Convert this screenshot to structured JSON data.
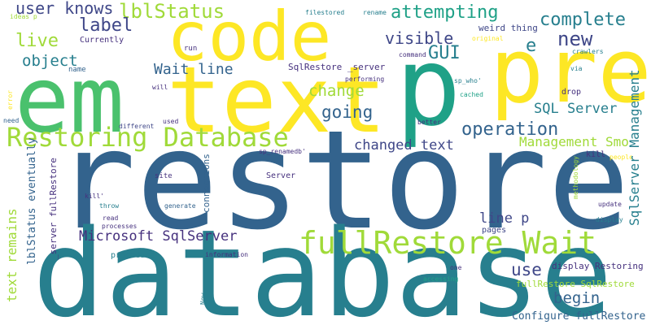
{
  "palette": {
    "indigo": "#46317e",
    "navy": "#3f4788",
    "blue": "#33638d",
    "teal": "#277f8e",
    "sea": "#1fa187",
    "green": "#4ac16d",
    "lime": "#a0da39",
    "yellow": "#fde725"
  },
  "words": [
    "restore",
    "database",
    "em",
    "text",
    "code",
    "pre",
    "p",
    "fullRestore Wait",
    "Restoring Database",
    "lblStatus",
    "user knows",
    "attempting",
    "complete",
    "label",
    "new",
    "live",
    "visible",
    "GUI",
    "e",
    "object",
    "Wait line",
    "SqlRestore _server",
    "change",
    "going",
    "SQL Server",
    "operation",
    "changed text",
    "Management Smo",
    "SqlServer Management",
    "Microsoft SqlServer",
    "line p",
    "use",
    "begin",
    "display Restoring",
    "fullRestore SqlRestore",
    "Configure fullRestore",
    "text remains",
    "lblStatus eventually",
    "_server fullRestore",
    "connections",
    "Currently",
    "ideas p",
    "filestored",
    "rename",
    "weird thing",
    "original",
    "crawlers",
    "run",
    "command",
    "via",
    "name",
    "performing",
    "sp_who'",
    "will",
    "error",
    "cached",
    "drop",
    "need",
    "different",
    "used",
    "better",
    "sp_renamedb'",
    "kill",
    "people",
    "site",
    "Server",
    "kill'",
    "methodology",
    "throw",
    "generate",
    "update",
    "read",
    "processes",
    "display",
    "pages",
    "procedure",
    "information",
    "one",
    "accessing",
    "Now"
  ]
}
